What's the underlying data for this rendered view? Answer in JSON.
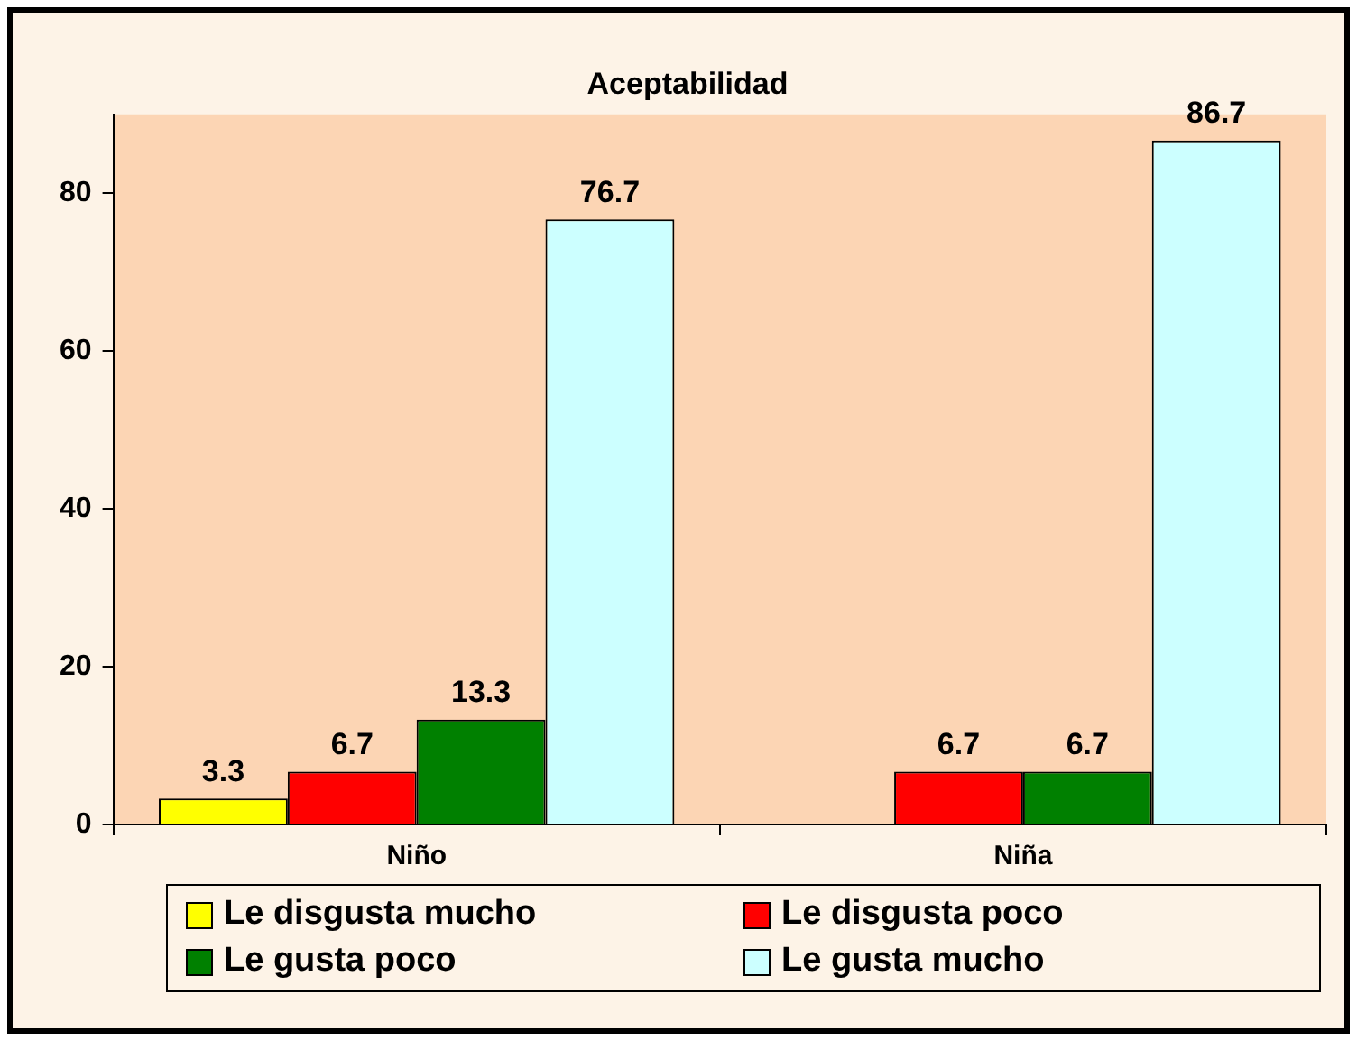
{
  "chart_data": {
    "type": "bar",
    "title": "Aceptabilidad",
    "categories": [
      "Niño",
      "Niña"
    ],
    "series": [
      {
        "name": "Le disgusta mucho",
        "color": "#ffff00",
        "values": [
          3.3,
          null
        ]
      },
      {
        "name": "Le disgusta poco",
        "color": "#ff0000",
        "values": [
          6.7,
          6.7
        ]
      },
      {
        "name": "Le gusta poco",
        "color": "#008000",
        "values": [
          13.3,
          6.7
        ]
      },
      {
        "name": "Le gusta mucho",
        "color": "#ccffff",
        "values": [
          76.7,
          86.7
        ]
      }
    ],
    "ylim": [
      0,
      90
    ],
    "yticks": [
      0,
      20,
      40,
      60,
      80
    ],
    "grid": false,
    "legend": "bottom",
    "data_labels": true
  }
}
